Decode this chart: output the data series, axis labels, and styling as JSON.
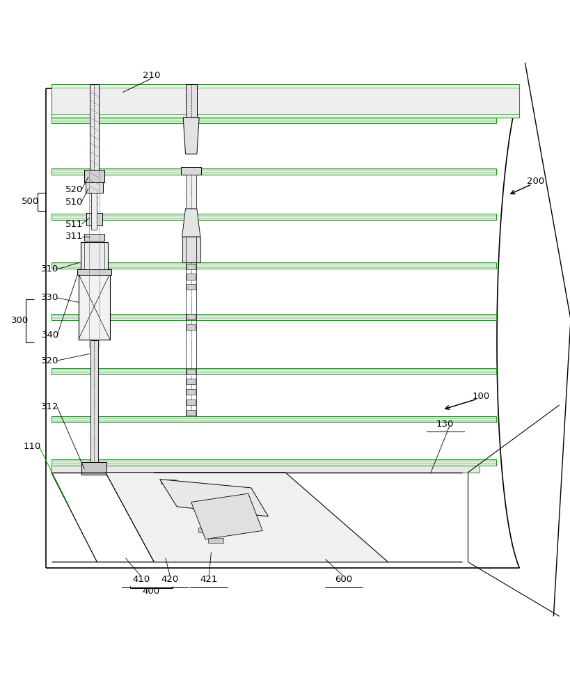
{
  "bg_color": "#ffffff",
  "line_color": "#000000",
  "green_color": "#00aa00",
  "purple_color": "#9966cc",
  "gray_color": "#aaaaaa"
}
